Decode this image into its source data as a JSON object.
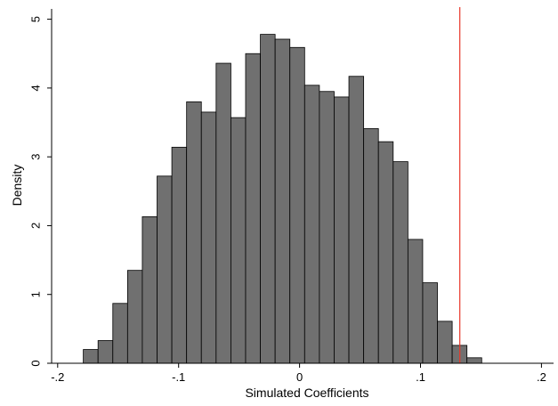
{
  "chart_data": {
    "type": "bar",
    "title": "",
    "xlabel": "Simulated Coefficients",
    "ylabel": "Density",
    "xlim": [
      -0.205,
      0.21
    ],
    "ylim": [
      0,
      5.15
    ],
    "grid": false,
    "legend": "none",
    "xticks": [
      {
        "value": -0.2,
        "label": "-.2"
      },
      {
        "value": -0.1,
        "label": "-.1"
      },
      {
        "value": 0,
        "label": "0"
      },
      {
        "value": 0.1,
        "label": ".1"
      },
      {
        "value": 0.2,
        "label": ".2"
      }
    ],
    "yticks": [
      {
        "value": 0,
        "label": "0"
      },
      {
        "value": 1,
        "label": "1"
      },
      {
        "value": 2,
        "label": "2"
      },
      {
        "value": 3,
        "label": "3"
      },
      {
        "value": 4,
        "label": "4"
      },
      {
        "value": 5,
        "label": "5"
      }
    ],
    "bin_width": 0.0122,
    "bins": [
      {
        "start": -0.1788,
        "density": 0.2
      },
      {
        "start": -0.1666,
        "density": 0.33
      },
      {
        "start": -0.1544,
        "density": 0.87
      },
      {
        "start": -0.1422,
        "density": 1.35
      },
      {
        "start": -0.13,
        "density": 2.13
      },
      {
        "start": -0.1178,
        "density": 2.72
      },
      {
        "start": -0.1056,
        "density": 3.14
      },
      {
        "start": -0.0934,
        "density": 3.8
      },
      {
        "start": -0.0812,
        "density": 3.65
      },
      {
        "start": -0.069,
        "density": 4.36
      },
      {
        "start": -0.0568,
        "density": 3.57
      },
      {
        "start": -0.0446,
        "density": 4.5
      },
      {
        "start": -0.0324,
        "density": 4.78
      },
      {
        "start": -0.0202,
        "density": 4.71
      },
      {
        "start": -0.008,
        "density": 4.59
      },
      {
        "start": 0.0042,
        "density": 4.04
      },
      {
        "start": 0.0164,
        "density": 3.95
      },
      {
        "start": 0.0286,
        "density": 3.87
      },
      {
        "start": 0.0408,
        "density": 4.17
      },
      {
        "start": 0.053,
        "density": 3.41
      },
      {
        "start": 0.0652,
        "density": 3.22
      },
      {
        "start": 0.0774,
        "density": 2.93
      },
      {
        "start": 0.0896,
        "density": 1.8
      },
      {
        "start": 0.1018,
        "density": 1.17
      },
      {
        "start": 0.114,
        "density": 0.61
      },
      {
        "start": 0.1262,
        "density": 0.26
      },
      {
        "start": 0.1384,
        "density": 0.08
      }
    ],
    "reference_line": {
      "x": 0.1325,
      "color": "#e8382a"
    },
    "bar_fill": "#707070",
    "bar_stroke": "#000000"
  }
}
